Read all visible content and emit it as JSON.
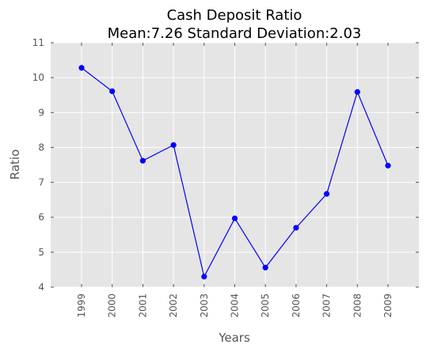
{
  "chart_data": {
    "type": "line",
    "title": "Cash Deposit Ratio",
    "subtitle": "Mean:7.26 Standard Deviation:2.03",
    "xlabel": "Years",
    "ylabel": "Ratio",
    "categories": [
      "1999",
      "2000",
      "2001",
      "2002",
      "2003",
      "2004",
      "2005",
      "2006",
      "2007",
      "2008",
      "2009"
    ],
    "values": [
      10.28,
      9.61,
      7.62,
      8.07,
      4.3,
      5.97,
      4.56,
      5.7,
      6.67,
      9.59,
      7.48
    ],
    "ylim": [
      4,
      11
    ],
    "yticks": [
      "4",
      "5",
      "6",
      "7",
      "8",
      "9",
      "10",
      "11"
    ],
    "grid": true,
    "line_color": "#0000ff",
    "background_color": "#e5e5e5"
  }
}
